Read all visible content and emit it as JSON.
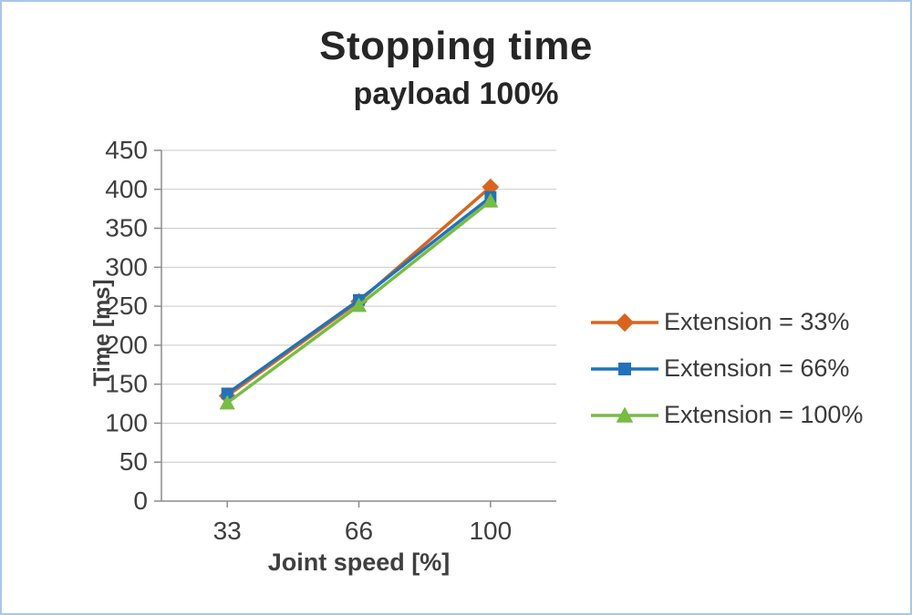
{
  "chart_data": {
    "type": "line",
    "title": "Stopping time",
    "subtitle": "payload 100%",
    "xlabel": "Joint speed [%]",
    "ylabel": "Time [ms]",
    "categories": [
      "33",
      "66",
      "100"
    ],
    "series": [
      {
        "name": "Extension = 33%",
        "values": [
          135,
          256,
          403
        ],
        "color": "#d9641e",
        "marker": "diamond"
      },
      {
        "name": "Extension = 66%",
        "values": [
          138,
          258,
          390
        ],
        "color": "#2272b9",
        "marker": "square"
      },
      {
        "name": "Extension = 100%",
        "values": [
          126,
          251,
          385
        ],
        "color": "#77bc43",
        "marker": "triangle"
      }
    ],
    "ylim": [
      0,
      450
    ],
    "ytick_step": 50,
    "grid": true,
    "legend_position": "right"
  },
  "colors": {
    "frame_border": "#a9c7e8",
    "gridline": "#c9c9c9",
    "axis_line": "#8c8c8c",
    "tick_label": "#3f3f3f",
    "title_text": "#262626"
  }
}
